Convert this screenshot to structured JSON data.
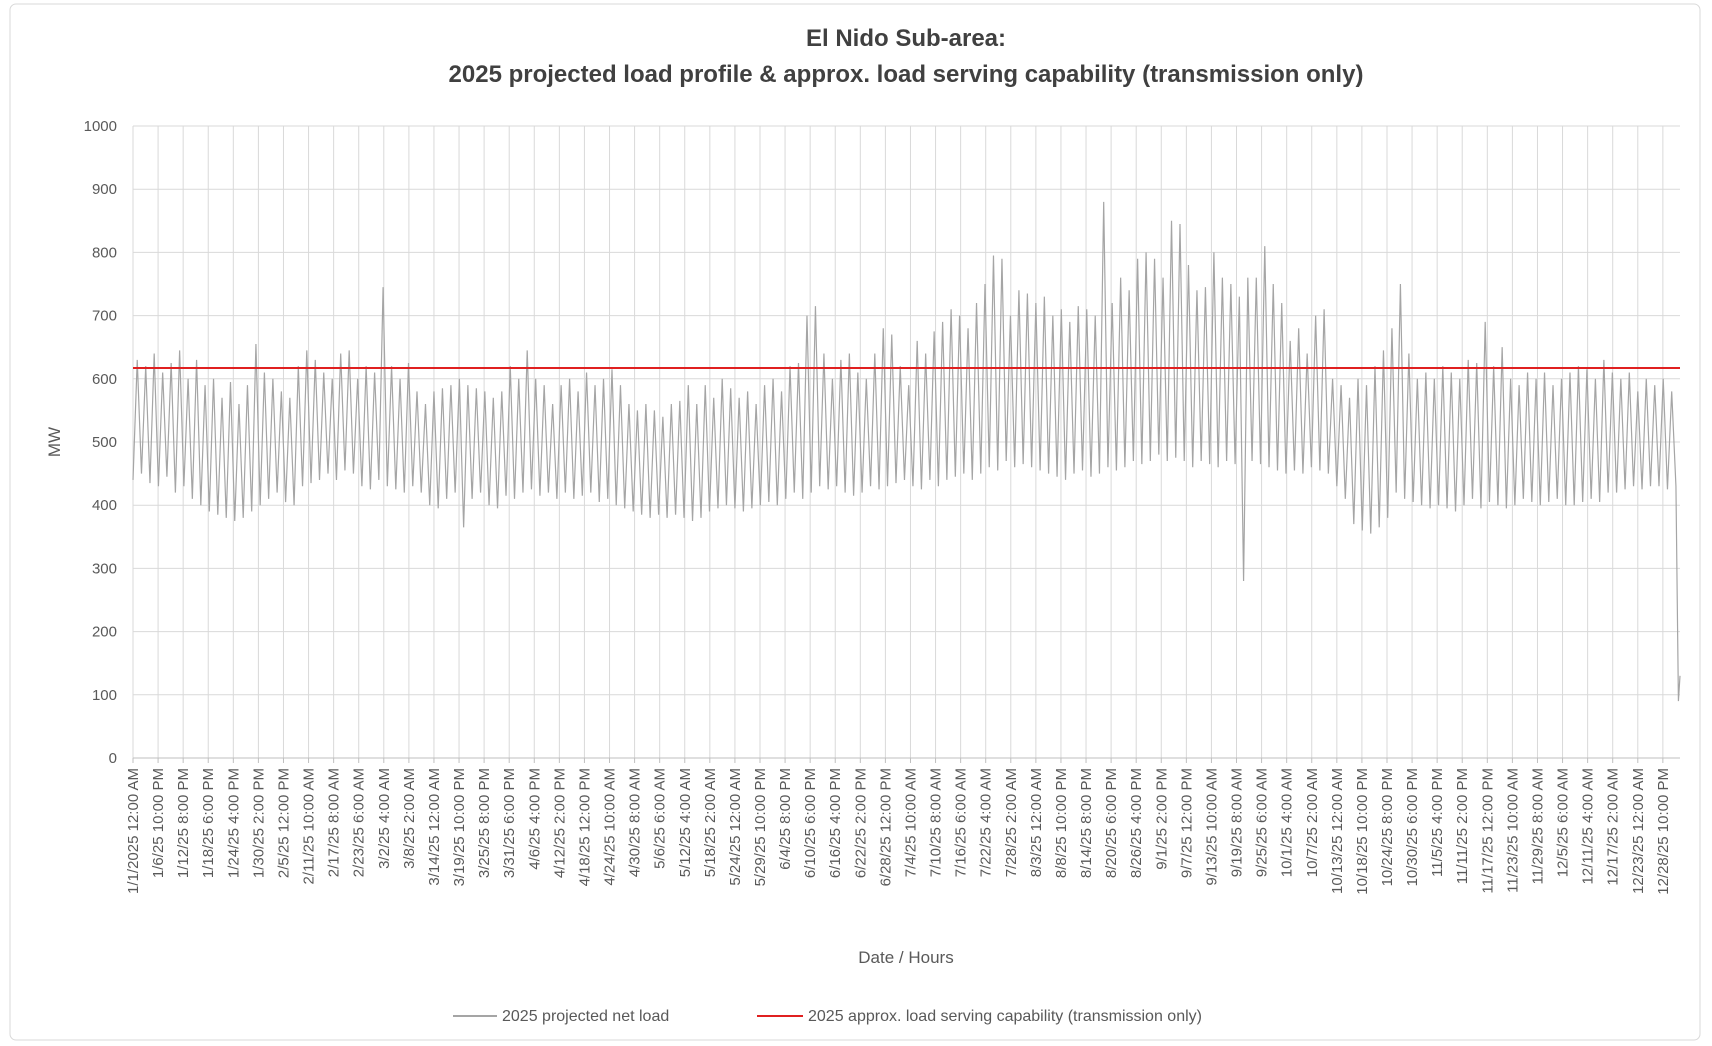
{
  "chart_data": {
    "type": "line",
    "title": [
      "El Nido Sub-area:",
      "2025 projected load profile & approx. load serving capability (transmission only)"
    ],
    "x_label": "Date / Hours",
    "y_label": "MW",
    "xlim": [
      0,
      8759
    ],
    "ylim": [
      0,
      1000
    ],
    "yticks": [
      0,
      100,
      200,
      300,
      400,
      500,
      600,
      700,
      800,
      900,
      1000
    ],
    "xticks": [
      {
        "value": 0,
        "label": "1/1/2025 12:00 AM"
      },
      {
        "value": 142,
        "label": "1/6/25 10:00 PM"
      },
      {
        "value": 284,
        "label": "1/12/25 8:00 PM"
      },
      {
        "value": 426,
        "label": "1/18/25 6:00 PM"
      },
      {
        "value": 568,
        "label": "1/24/25 4:00 PM"
      },
      {
        "value": 710,
        "label": "1/30/25 2:00 PM"
      },
      {
        "value": 852,
        "label": "2/5/25 12:00 PM"
      },
      {
        "value": 994,
        "label": "2/11/25 10:00 AM"
      },
      {
        "value": 1136,
        "label": "2/17/25 8:00 AM"
      },
      {
        "value": 1278,
        "label": "2/23/25 6:00 AM"
      },
      {
        "value": 1420,
        "label": "3/2/25 4:00 AM"
      },
      {
        "value": 1562,
        "label": "3/8/25 2:00 AM"
      },
      {
        "value": 1704,
        "label": "3/14/25 12:00 AM"
      },
      {
        "value": 1846,
        "label": "3/19/25 10:00 PM"
      },
      {
        "value": 1988,
        "label": "3/25/25 8:00 PM"
      },
      {
        "value": 2130,
        "label": "3/31/25 6:00 PM"
      },
      {
        "value": 2272,
        "label": "4/6/25 4:00 PM"
      },
      {
        "value": 2414,
        "label": "4/12/25 2:00 PM"
      },
      {
        "value": 2556,
        "label": "4/18/25 12:00 PM"
      },
      {
        "value": 2698,
        "label": "4/24/25 10:00 AM"
      },
      {
        "value": 2840,
        "label": "4/30/25 8:00 AM"
      },
      {
        "value": 2982,
        "label": "5/6/25 6:00 AM"
      },
      {
        "value": 3124,
        "label": "5/12/25 4:00 AM"
      },
      {
        "value": 3266,
        "label": "5/18/25 2:00 AM"
      },
      {
        "value": 3408,
        "label": "5/24/25 12:00 AM"
      },
      {
        "value": 3550,
        "label": "5/29/25 10:00 PM"
      },
      {
        "value": 3692,
        "label": "6/4/25 8:00 PM"
      },
      {
        "value": 3834,
        "label": "6/10/25 6:00 PM"
      },
      {
        "value": 3976,
        "label": "6/16/25 4:00 PM"
      },
      {
        "value": 4118,
        "label": "6/22/25 2:00 PM"
      },
      {
        "value": 4260,
        "label": "6/28/25 12:00 PM"
      },
      {
        "value": 4402,
        "label": "7/4/25 10:00 AM"
      },
      {
        "value": 4544,
        "label": "7/10/25 8:00 AM"
      },
      {
        "value": 4686,
        "label": "7/16/25 6:00 AM"
      },
      {
        "value": 4828,
        "label": "7/22/25 4:00 AM"
      },
      {
        "value": 4970,
        "label": "7/28/25 2:00 AM"
      },
      {
        "value": 5112,
        "label": "8/3/25 12:00 AM"
      },
      {
        "value": 5254,
        "label": "8/8/25 10:00 PM"
      },
      {
        "value": 5396,
        "label": "8/14/25 8:00 PM"
      },
      {
        "value": 5538,
        "label": "8/20/25 6:00 PM"
      },
      {
        "value": 5680,
        "label": "8/26/25 4:00 PM"
      },
      {
        "value": 5822,
        "label": "9/1/25 2:00 PM"
      },
      {
        "value": 5964,
        "label": "9/7/25 12:00 PM"
      },
      {
        "value": 6106,
        "label": "9/13/25 10:00 AM"
      },
      {
        "value": 6248,
        "label": "9/19/25 8:00 AM"
      },
      {
        "value": 6390,
        "label": "9/25/25 6:00 AM"
      },
      {
        "value": 6532,
        "label": "10/1/25 4:00 AM"
      },
      {
        "value": 6674,
        "label": "10/7/25 2:00 AM"
      },
      {
        "value": 6816,
        "label": "10/13/25 12:00 AM"
      },
      {
        "value": 6958,
        "label": "10/18/25 10:00 PM"
      },
      {
        "value": 7100,
        "label": "10/24/25 8:00 PM"
      },
      {
        "value": 7242,
        "label": "10/30/25 6:00 PM"
      },
      {
        "value": 7384,
        "label": "11/5/25 4:00 PM"
      },
      {
        "value": 7526,
        "label": "11/11/25 2:00 PM"
      },
      {
        "value": 7668,
        "label": "11/17/25 12:00 PM"
      },
      {
        "value": 7810,
        "label": "11/23/25 10:00 AM"
      },
      {
        "value": 7952,
        "label": "11/29/25 8:00 AM"
      },
      {
        "value": 8094,
        "label": "12/5/25 6:00 AM"
      },
      {
        "value": 8236,
        "label": "12/11/25 4:00 AM"
      },
      {
        "value": 8378,
        "label": "12/17/25 2:00 AM"
      },
      {
        "value": 8520,
        "label": "12/23/25 12:00 AM"
      },
      {
        "value": 8662,
        "label": "12/28/25 10:00 PM"
      }
    ],
    "grid": true,
    "series": [
      {
        "name": "2025 projected net load",
        "color": "#a5a5a5",
        "x": [
          0,
          24,
          48,
          72,
          96,
          120,
          144,
          168,
          192,
          216,
          240,
          264,
          288,
          312,
          336,
          360,
          384,
          408,
          432,
          456,
          480,
          504,
          528,
          552,
          576,
          600,
          624,
          648,
          672,
          696,
          720,
          744,
          768,
          792,
          816,
          840,
          864,
          888,
          912,
          936,
          960,
          984,
          1008,
          1032,
          1056,
          1080,
          1104,
          1128,
          1152,
          1176,
          1200,
          1224,
          1248,
          1272,
          1296,
          1320,
          1344,
          1368,
          1392,
          1416,
          1440,
          1464,
          1488,
          1512,
          1536,
          1560,
          1584,
          1608,
          1632,
          1656,
          1680,
          1704,
          1728,
          1752,
          1776,
          1800,
          1824,
          1848,
          1872,
          1896,
          1920,
          1944,
          1968,
          1992,
          2016,
          2040,
          2064,
          2088,
          2112,
          2136,
          2160,
          2184,
          2208,
          2232,
          2256,
          2280,
          2304,
          2328,
          2352,
          2376,
          2400,
          2424,
          2448,
          2472,
          2496,
          2520,
          2544,
          2568,
          2592,
          2616,
          2640,
          2664,
          2688,
          2712,
          2736,
          2760,
          2784,
          2808,
          2832,
          2856,
          2880,
          2904,
          2928,
          2952,
          2976,
          3000,
          3024,
          3048,
          3072,
          3096,
          3120,
          3144,
          3168,
          3192,
          3216,
          3240,
          3264,
          3288,
          3312,
          3336,
          3360,
          3384,
          3408,
          3432,
          3456,
          3480,
          3504,
          3528,
          3552,
          3576,
          3600,
          3624,
          3648,
          3672,
          3696,
          3720,
          3744,
          3768,
          3792,
          3816,
          3840,
          3864,
          3888,
          3912,
          3936,
          3960,
          3984,
          4008,
          4032,
          4056,
          4080,
          4104,
          4128,
          4152,
          4176,
          4200,
          4224,
          4248,
          4272,
          4296,
          4320,
          4344,
          4368,
          4392,
          4416,
          4440,
          4464,
          4488,
          4512,
          4536,
          4560,
          4584,
          4608,
          4632,
          4656,
          4680,
          4704,
          4728,
          4752,
          4776,
          4800,
          4824,
          4848,
          4872,
          4896,
          4920,
          4944,
          4968,
          4992,
          5016,
          5040,
          5064,
          5088,
          5112,
          5136,
          5160,
          5184,
          5208,
          5232,
          5256,
          5280,
          5304,
          5328,
          5352,
          5376,
          5400,
          5424,
          5448,
          5472,
          5496,
          5520,
          5544,
          5568,
          5592,
          5616,
          5640,
          5664,
          5688,
          5712,
          5736,
          5760,
          5784,
          5808,
          5832,
          5856,
          5880,
          5904,
          5928,
          5952,
          5976,
          6000,
          6024,
          6048,
          6072,
          6096,
          6120,
          6144,
          6168,
          6192,
          6216,
          6240,
          6264,
          6288,
          6312,
          6336,
          6360,
          6384,
          6408,
          6432,
          6456,
          6480,
          6504,
          6528,
          6552,
          6576,
          6600,
          6624,
          6648,
          6672,
          6696,
          6720,
          6744,
          6768,
          6792,
          6816,
          6840,
          6864,
          6888,
          6912,
          6936,
          6960,
          6984,
          7008,
          7032,
          7056,
          7080,
          7104,
          7128,
          7152,
          7176,
          7200,
          7224,
          7248,
          7272,
          7296,
          7320,
          7344,
          7368,
          7392,
          7416,
          7440,
          7464,
          7488,
          7512,
          7536,
          7560,
          7584,
          7608,
          7632,
          7656,
          7680,
          7704,
          7728,
          7752,
          7776,
          7800,
          7824,
          7848,
          7872,
          7896,
          7920,
          7944,
          7968,
          7992,
          8016,
          8040,
          8064,
          8088,
          8112,
          8136,
          8160,
          8184,
          8208,
          8232,
          8256,
          8280,
          8304,
          8328,
          8352,
          8376,
          8400,
          8424,
          8448,
          8472,
          8496,
          8520,
          8544,
          8568,
          8592,
          8616,
          8640,
          8664,
          8688,
          8712,
          8736,
          8750,
          8759
        ],
        "values": [
          440,
          630,
          450,
          620,
          435,
          640,
          430,
          610,
          445,
          625,
          420,
          645,
          430,
          600,
          410,
          630,
          400,
          590,
          390,
          600,
          385,
          570,
          380,
          595,
          375,
          560,
          380,
          590,
          390,
          655,
          400,
          610,
          410,
          600,
          420,
          580,
          405,
          570,
          400,
          620,
          430,
          645,
          435,
          630,
          440,
          610,
          450,
          600,
          440,
          640,
          455,
          645,
          450,
          600,
          430,
          620,
          425,
          610,
          440,
          745,
          430,
          620,
          425,
          600,
          420,
          625,
          430,
          580,
          420,
          560,
          400,
          580,
          395,
          585,
          410,
          590,
          420,
          600,
          365,
          590,
          410,
          585,
          420,
          580,
          400,
          570,
          395,
          580,
          415,
          620,
          410,
          600,
          420,
          645,
          425,
          600,
          415,
          590,
          420,
          560,
          410,
          590,
          420,
          600,
          410,
          580,
          415,
          610,
          420,
          590,
          405,
          600,
          410,
          615,
          400,
          590,
          395,
          560,
          390,
          550,
          385,
          560,
          380,
          550,
          385,
          540,
          380,
          560,
          385,
          565,
          380,
          590,
          375,
          560,
          380,
          590,
          390,
          570,
          395,
          600,
          400,
          585,
          395,
          570,
          390,
          580,
          395,
          560,
          400,
          590,
          405,
          600,
          400,
          580,
          410,
          620,
          420,
          625,
          410,
          700,
          420,
          715,
          430,
          640,
          425,
          600,
          430,
          630,
          420,
          640,
          415,
          610,
          420,
          600,
          430,
          640,
          425,
          680,
          430,
          670,
          435,
          620,
          440,
          590,
          430,
          660,
          425,
          640,
          440,
          675,
          430,
          690,
          440,
          710,
          445,
          700,
          450,
          680,
          440,
          720,
          450,
          750,
          460,
          795,
          455,
          790,
          470,
          700,
          460,
          740,
          465,
          735,
          460,
          720,
          455,
          730,
          450,
          700,
          445,
          710,
          440,
          690,
          450,
          715,
          455,
          710,
          445,
          700,
          450,
          880,
          460,
          720,
          455,
          760,
          460,
          740,
          470,
          790,
          465,
          800,
          470,
          790,
          480,
          760,
          470,
          850,
          475,
          845,
          470,
          780,
          460,
          740,
          470,
          745,
          465,
          800,
          460,
          760,
          470,
          750,
          465,
          730,
          280,
          760,
          470,
          760,
          465,
          810,
          460,
          750,
          455,
          720,
          450,
          660,
          455,
          680,
          450,
          640,
          460,
          700,
          455,
          710,
          450,
          600,
          430,
          590,
          410,
          570,
          370,
          600,
          360,
          590,
          355,
          620,
          365,
          645,
          380,
          680,
          420,
          750,
          410,
          640,
          405,
          600,
          400,
          610,
          395,
          600,
          400,
          620,
          395,
          610,
          390,
          600,
          400,
          630,
          410,
          625,
          395,
          690,
          405,
          620,
          400,
          650,
          395,
          600,
          400,
          590,
          410,
          610,
          405,
          600,
          400,
          610,
          405,
          590,
          410,
          600,
          400,
          610,
          400,
          620,
          405,
          615,
          410,
          600,
          405,
          630,
          420,
          610,
          420,
          600,
          425,
          610,
          430,
          580,
          425,
          600,
          430,
          590,
          430,
          600,
          425,
          580,
          430,
          90,
          130
        ]
      },
      {
        "name": "2025 approx. load serving capability (transmission only)",
        "color": "#e02020",
        "x": [
          0,
          8759
        ],
        "values": [
          617,
          617
        ]
      }
    ]
  }
}
